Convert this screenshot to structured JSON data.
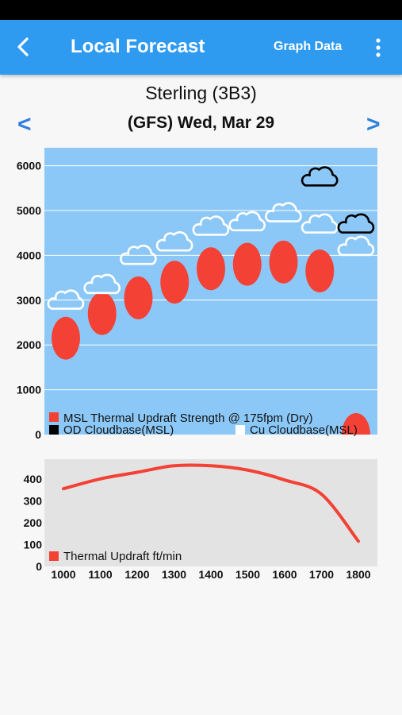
{
  "header": {
    "title": "Local Forecast",
    "graph_data_label": "Graph Data",
    "back_icon": "chevron-left-icon",
    "menu_icon": "more-vert-icon"
  },
  "location": "Sterling (3B3)",
  "date_label": "(GFS) Wed, Mar 29",
  "nav": {
    "prev": "<",
    "next": ">"
  },
  "colors": {
    "accent": "#2f9bf0",
    "chart1_bg": "#8cc8f7",
    "chart2_bg": "#e3e3e3",
    "thermal": "#f34235",
    "nav_arrow": "#2f7fe0"
  },
  "chart_data": [
    {
      "type": "scatter",
      "title": "",
      "xlabel": "",
      "ylabel": "",
      "x": [
        "1000",
        "1100",
        "1200",
        "1300",
        "1400",
        "1500",
        "1600",
        "1700",
        "1800"
      ],
      "ylim": [
        0,
        6400
      ],
      "yticks": [
        0,
        1000,
        2000,
        3000,
        4000,
        5000,
        6000
      ],
      "grid": true,
      "series": [
        {
          "name": "MSL Thermal Updraft Strength @ 175fpm (Dry)",
          "marker": "filled-ellipse",
          "color": "#f34235",
          "values": [
            2150,
            2700,
            3050,
            3400,
            3700,
            3800,
            3850,
            3650,
            0
          ]
        },
        {
          "name": "OD Cloudbase(MSL)",
          "marker": "black-cloud-outline",
          "color": "#000000",
          "values": [
            null,
            null,
            null,
            null,
            null,
            null,
            null,
            5750,
            4700
          ]
        },
        {
          "name": "Cu Cloudbase(MSL)",
          "marker": "white-cloud-outline",
          "color": "#ffffff",
          "values": [
            3000,
            3350,
            4000,
            4300,
            4650,
            4750,
            4950,
            4700,
            4200
          ]
        }
      ],
      "legend": "bottom"
    },
    {
      "type": "line",
      "title": "",
      "xlabel": "",
      "ylabel": "",
      "x": [
        "1000",
        "1100",
        "1200",
        "1300",
        "1400",
        "1500",
        "1600",
        "1700",
        "1800"
      ],
      "ylim": [
        0,
        490
      ],
      "yticks": [
        0,
        100,
        200,
        300,
        400
      ],
      "grid": false,
      "series": [
        {
          "name": "Thermal Updraft ft/min",
          "color": "#f34235",
          "values": [
            355,
            400,
            430,
            460,
            460,
            440,
            395,
            330,
            115
          ]
        }
      ],
      "legend": "bottom-left"
    }
  ]
}
